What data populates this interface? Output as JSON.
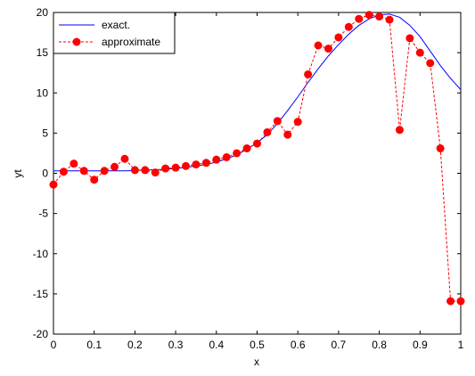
{
  "chart_data": {
    "type": "line",
    "title": "",
    "xlabel": "x",
    "ylabel": "yt",
    "xlim": [
      0,
      1
    ],
    "ylim": [
      -20,
      20
    ],
    "xticks": [
      "0",
      "0.1",
      "0.2",
      "0.3",
      "0.4",
      "0.5",
      "0.6",
      "0.7",
      "0.8",
      "0.9",
      "1"
    ],
    "yticks": [
      "20",
      "15",
      "10",
      "5",
      "0",
      "-5",
      "-10",
      "-15",
      "-20"
    ],
    "grid": false,
    "legend_position": "top-left",
    "series": [
      {
        "name": "exact.",
        "style": "solid",
        "color": "#0000ff",
        "marker": "none",
        "x": [
          0,
          0.025,
          0.05,
          0.075,
          0.1,
          0.125,
          0.15,
          0.175,
          0.2,
          0.225,
          0.25,
          0.275,
          0.3,
          0.325,
          0.35,
          0.375,
          0.4,
          0.425,
          0.45,
          0.475,
          0.5,
          0.525,
          0.55,
          0.575,
          0.6,
          0.625,
          0.65,
          0.675,
          0.7,
          0.725,
          0.75,
          0.775,
          0.8,
          0.825,
          0.85,
          0.875,
          0.9,
          0.925,
          0.95,
          0.975,
          1.0
        ],
        "y": [
          0.3,
          0.3,
          0.3,
          0.3,
          0.3,
          0.3,
          0.3,
          0.3,
          0.35,
          0.4,
          0.45,
          0.5,
          0.6,
          0.75,
          0.9,
          1.1,
          1.4,
          1.8,
          2.3,
          3.0,
          3.8,
          4.8,
          6.2,
          7.8,
          9.5,
          11.3,
          13.0,
          14.6,
          16.0,
          17.3,
          18.4,
          19.2,
          19.7,
          19.8,
          19.4,
          18.4,
          17.0,
          15.2,
          13.4,
          11.8,
          10.4
        ]
      },
      {
        "name": "approximate",
        "style": "dashed",
        "color": "#ff0000",
        "marker": "circle",
        "x": [
          0,
          0.025,
          0.05,
          0.075,
          0.1,
          0.125,
          0.15,
          0.175,
          0.2,
          0.225,
          0.25,
          0.275,
          0.3,
          0.325,
          0.35,
          0.375,
          0.4,
          0.425,
          0.45,
          0.475,
          0.5,
          0.525,
          0.55,
          0.575,
          0.6,
          0.625,
          0.65,
          0.675,
          0.7,
          0.725,
          0.75,
          0.775,
          0.8,
          0.825,
          0.85,
          0.875,
          0.9,
          0.925,
          0.95,
          0.975,
          1.0
        ],
        "y": [
          -1.4,
          0.2,
          1.2,
          0.3,
          -0.8,
          0.3,
          0.8,
          1.8,
          0.4,
          0.4,
          0.1,
          0.6,
          0.7,
          0.9,
          1.1,
          1.3,
          1.7,
          2.0,
          2.5,
          3.1,
          3.7,
          5.1,
          6.5,
          4.8,
          6.4,
          12.3,
          15.9,
          15.5,
          16.9,
          18.2,
          19.2,
          19.7,
          19.5,
          19.1,
          5.4,
          16.8,
          15.0,
          13.7,
          3.1,
          -15.9,
          -15.9
        ]
      }
    ]
  }
}
